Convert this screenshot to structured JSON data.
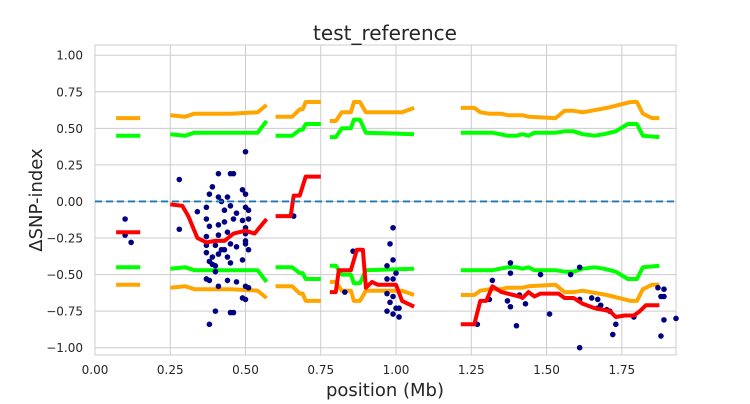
{
  "chart_data": {
    "type": "line+scatter",
    "title": "test_reference",
    "xlabel": "position (Mb)",
    "ylabel": "ΔSNP-index",
    "xlim": [
      0,
      1.93
    ],
    "ylim": [
      -1.05,
      1.07
    ],
    "xticks": [
      "0.00",
      "0.25",
      "0.50",
      "0.75",
      "1.00",
      "1.25",
      "1.50",
      "1.75"
    ],
    "yticks": [
      "1.00",
      "0.75",
      "0.50",
      "0.25",
      "0.00",
      "−0.25",
      "−0.50",
      "−0.75",
      "−1.00"
    ],
    "grid": true,
    "zero_line": {
      "y": 0,
      "style": "dashed",
      "color": "#1f77b4"
    },
    "colors": {
      "points": "#000080",
      "delta": "#ff0000",
      "ci95": "#00ff00",
      "ci99": "#ffa500",
      "grid": "#cccccc"
    },
    "segments": [
      {
        "delta": [
          [
            0.07,
            -0.21
          ],
          [
            0.15,
            -0.21
          ]
        ],
        "ci95_upper": [
          [
            0.07,
            0.45
          ],
          [
            0.15,
            0.45
          ]
        ],
        "ci99_upper": [
          [
            0.07,
            0.57
          ],
          [
            0.15,
            0.57
          ]
        ]
      },
      {
        "delta": [
          [
            0.25,
            -0.02
          ],
          [
            0.29,
            -0.03
          ],
          [
            0.31,
            -0.1
          ],
          [
            0.34,
            -0.25
          ],
          [
            0.37,
            -0.28
          ],
          [
            0.4,
            -0.27
          ],
          [
            0.43,
            -0.27
          ],
          [
            0.46,
            -0.22
          ],
          [
            0.5,
            -0.2
          ],
          [
            0.53,
            -0.22
          ],
          [
            0.57,
            -0.12
          ]
        ],
        "ci95_upper": [
          [
            0.25,
            0.46
          ],
          [
            0.3,
            0.45
          ],
          [
            0.33,
            0.47
          ],
          [
            0.45,
            0.47
          ],
          [
            0.54,
            0.47
          ],
          [
            0.57,
            0.55
          ]
        ],
        "ci99_upper": [
          [
            0.25,
            0.59
          ],
          [
            0.3,
            0.58
          ],
          [
            0.33,
            0.6
          ],
          [
            0.45,
            0.6
          ],
          [
            0.54,
            0.61
          ],
          [
            0.57,
            0.66
          ]
        ]
      },
      {
        "delta": [
          [
            0.6,
            -0.1
          ],
          [
            0.65,
            -0.1
          ],
          [
            0.66,
            0.04
          ],
          [
            0.68,
            0.04
          ],
          [
            0.7,
            0.17
          ],
          [
            0.75,
            0.17
          ]
        ],
        "ci95_upper": [
          [
            0.6,
            0.45
          ],
          [
            0.655,
            0.45
          ],
          [
            0.68,
            0.49
          ],
          [
            0.69,
            0.49
          ],
          [
            0.7,
            0.53
          ],
          [
            0.75,
            0.53
          ]
        ],
        "ci99_upper": [
          [
            0.6,
            0.58
          ],
          [
            0.655,
            0.58
          ],
          [
            0.68,
            0.63
          ],
          [
            0.69,
            0.63
          ],
          [
            0.7,
            0.68
          ],
          [
            0.75,
            0.68
          ]
        ]
      },
      {
        "delta": [
          [
            0.78,
            -0.62
          ],
          [
            0.8,
            -0.62
          ],
          [
            0.81,
            -0.47
          ],
          [
            0.85,
            -0.47
          ],
          [
            0.87,
            -0.33
          ],
          [
            0.89,
            -0.33
          ],
          [
            0.9,
            -0.59
          ],
          [
            0.92,
            -0.55
          ],
          [
            0.94,
            -0.57
          ],
          [
            1.0,
            -0.57
          ],
          [
            1.02,
            -0.68
          ],
          [
            1.06,
            -0.72
          ]
        ],
        "ci95_upper": [
          [
            0.78,
            0.44
          ],
          [
            0.8,
            0.44
          ],
          [
            0.82,
            0.5
          ],
          [
            0.85,
            0.5
          ],
          [
            0.86,
            0.56
          ],
          [
            0.88,
            0.56
          ],
          [
            0.9,
            0.47
          ],
          [
            1.06,
            0.46
          ]
        ],
        "ci99_upper": [
          [
            0.78,
            0.55
          ],
          [
            0.8,
            0.55
          ],
          [
            0.82,
            0.61
          ],
          [
            0.85,
            0.61
          ],
          [
            0.86,
            0.68
          ],
          [
            0.88,
            0.68
          ],
          [
            0.9,
            0.61
          ],
          [
            1.02,
            0.61
          ],
          [
            1.06,
            0.64
          ]
        ]
      },
      {
        "delta": [
          [
            1.215,
            -0.84
          ],
          [
            1.26,
            -0.84
          ],
          [
            1.28,
            -0.68
          ],
          [
            1.3,
            -0.68
          ],
          [
            1.32,
            -0.58
          ],
          [
            1.35,
            -0.62
          ],
          [
            1.39,
            -0.64
          ],
          [
            1.41,
            -0.65
          ],
          [
            1.42,
            -0.66
          ],
          [
            1.44,
            -0.62
          ],
          [
            1.46,
            -0.65
          ],
          [
            1.48,
            -0.63
          ],
          [
            1.54,
            -0.63
          ],
          [
            1.56,
            -0.66
          ],
          [
            1.59,
            -0.66
          ],
          [
            1.62,
            -0.7
          ],
          [
            1.66,
            -0.73
          ],
          [
            1.71,
            -0.75
          ],
          [
            1.73,
            -0.79
          ],
          [
            1.76,
            -0.78
          ],
          [
            1.79,
            -0.78
          ],
          [
            1.81,
            -0.75
          ],
          [
            1.83,
            -0.71
          ],
          [
            1.875,
            -0.71
          ]
        ],
        "ci95_upper": [
          [
            1.215,
            0.47
          ],
          [
            1.32,
            0.47
          ],
          [
            1.37,
            0.45
          ],
          [
            1.4,
            0.45
          ],
          [
            1.42,
            0.46
          ],
          [
            1.44,
            0.45
          ],
          [
            1.46,
            0.47
          ],
          [
            1.53,
            0.47
          ],
          [
            1.56,
            0.48
          ],
          [
            1.59,
            0.48
          ],
          [
            1.62,
            0.46
          ],
          [
            1.66,
            0.45
          ],
          [
            1.69,
            0.46
          ],
          [
            1.73,
            0.48
          ],
          [
            1.77,
            0.53
          ],
          [
            1.8,
            0.53
          ],
          [
            1.82,
            0.45
          ],
          [
            1.875,
            0.44
          ]
        ],
        "ci99_upper": [
          [
            1.215,
            0.64
          ],
          [
            1.26,
            0.64
          ],
          [
            1.28,
            0.61
          ],
          [
            1.31,
            0.6
          ],
          [
            1.35,
            0.6
          ],
          [
            1.37,
            0.59
          ],
          [
            1.42,
            0.59
          ],
          [
            1.44,
            0.58
          ],
          [
            1.53,
            0.57
          ],
          [
            1.56,
            0.62
          ],
          [
            1.59,
            0.62
          ],
          [
            1.62,
            0.61
          ],
          [
            1.7,
            0.64
          ],
          [
            1.78,
            0.68
          ],
          [
            1.8,
            0.68
          ],
          [
            1.82,
            0.6
          ],
          [
            1.85,
            0.57
          ],
          [
            1.875,
            0.57
          ]
        ]
      }
    ],
    "points": [
      [
        0.1,
        -0.12
      ],
      [
        0.1,
        -0.23
      ],
      [
        0.12,
        -0.28
      ],
      [
        0.28,
        0.15
      ],
      [
        0.28,
        -0.19
      ],
      [
        0.5,
        0.34
      ],
      [
        0.41,
        0.19
      ],
      [
        0.45,
        0.19
      ],
      [
        0.46,
        0.19
      ],
      [
        0.39,
        0.1
      ],
      [
        0.38,
        0.05
      ],
      [
        0.41,
        0.03
      ],
      [
        0.44,
        0.03
      ],
      [
        0.49,
        0.08
      ],
      [
        0.5,
        0.05
      ],
      [
        0.42,
        0.0
      ],
      [
        0.34,
        -0.07
      ],
      [
        0.37,
        -0.04
      ],
      [
        0.43,
        -0.06
      ],
      [
        0.45,
        -0.03
      ],
      [
        0.47,
        -0.08
      ],
      [
        0.5,
        -0.04
      ],
      [
        0.51,
        -0.06
      ],
      [
        0.51,
        -0.12
      ],
      [
        0.37,
        -0.12
      ],
      [
        0.38,
        -0.17
      ],
      [
        0.41,
        -0.16
      ],
      [
        0.43,
        -0.14
      ],
      [
        0.46,
        -0.12
      ],
      [
        0.49,
        -0.13
      ],
      [
        0.5,
        -0.18
      ],
      [
        0.37,
        -0.24
      ],
      [
        0.41,
        -0.23
      ],
      [
        0.44,
        -0.21
      ],
      [
        0.5,
        -0.22
      ],
      [
        0.5,
        -0.27
      ],
      [
        0.37,
        -0.3
      ],
      [
        0.4,
        -0.3
      ],
      [
        0.42,
        -0.33
      ],
      [
        0.45,
        -0.29
      ],
      [
        0.47,
        -0.31
      ],
      [
        0.5,
        -0.29
      ],
      [
        0.51,
        -0.33
      ],
      [
        0.37,
        -0.35
      ],
      [
        0.39,
        -0.38
      ],
      [
        0.41,
        -0.36
      ],
      [
        0.43,
        -0.33
      ],
      [
        0.44,
        -0.38
      ],
      [
        0.45,
        -0.42
      ],
      [
        0.49,
        -0.4
      ],
      [
        0.38,
        -0.41
      ],
      [
        0.39,
        -0.43
      ],
      [
        0.4,
        -0.44
      ],
      [
        0.4,
        -0.48
      ],
      [
        0.37,
        -0.53
      ],
      [
        0.38,
        -0.54
      ],
      [
        0.41,
        -0.58
      ],
      [
        0.44,
        -0.54
      ],
      [
        0.47,
        -0.55
      ],
      [
        0.5,
        -0.58
      ],
      [
        0.51,
        -0.59
      ],
      [
        0.49,
        -0.66
      ],
      [
        0.5,
        -0.67
      ],
      [
        0.4,
        -0.75
      ],
      [
        0.45,
        -0.76
      ],
      [
        0.46,
        -0.76
      ],
      [
        0.38,
        -0.84
      ],
      [
        0.66,
        -0.1
      ],
      [
        0.857,
        -0.34
      ],
      [
        0.83,
        -0.62
      ],
      [
        0.99,
        -0.18
      ],
      [
        0.98,
        -0.29
      ],
      [
        0.99,
        -0.4
      ],
      [
        0.97,
        -0.44
      ],
      [
        1.0,
        -0.49
      ],
      [
        0.97,
        -0.53
      ],
      [
        0.99,
        -0.53
      ],
      [
        0.97,
        -0.63
      ],
      [
        0.99,
        -0.65
      ],
      [
        0.98,
        -0.69
      ],
      [
        1.0,
        -0.73
      ],
      [
        1.01,
        -0.73
      ],
      [
        0.97,
        -0.75
      ],
      [
        0.99,
        -0.77
      ],
      [
        1.01,
        -0.79
      ],
      [
        1.27,
        -0.84
      ],
      [
        1.32,
        -0.54
      ],
      [
        1.31,
        -0.67
      ],
      [
        1.38,
        -0.42
      ],
      [
        1.38,
        -0.49
      ],
      [
        1.37,
        -0.68
      ],
      [
        1.38,
        -0.72
      ],
      [
        1.4,
        -0.85
      ],
      [
        1.41,
        -0.64
      ],
      [
        1.43,
        -0.7
      ],
      [
        1.48,
        -0.5
      ],
      [
        1.51,
        -0.77
      ],
      [
        1.58,
        -0.5
      ],
      [
        1.61,
        -0.45
      ],
      [
        1.61,
        -0.67
      ],
      [
        1.61,
        -1.0
      ],
      [
        1.65,
        -0.66
      ],
      [
        1.67,
        -0.73
      ],
      [
        1.67,
        -0.67
      ],
      [
        1.68,
        -0.71
      ],
      [
        1.7,
        -0.74
      ],
      [
        1.71,
        -0.75
      ],
      [
        1.73,
        -0.84
      ],
      [
        1.72,
        -0.91
      ],
      [
        1.79,
        -0.79
      ],
      [
        1.87,
        -0.59
      ],
      [
        1.89,
        -0.6
      ],
      [
        1.88,
        -0.65
      ],
      [
        1.89,
        -0.65
      ],
      [
        1.89,
        -0.81
      ],
      [
        1.88,
        -0.92
      ],
      [
        1.93,
        -0.8
      ]
    ]
  }
}
